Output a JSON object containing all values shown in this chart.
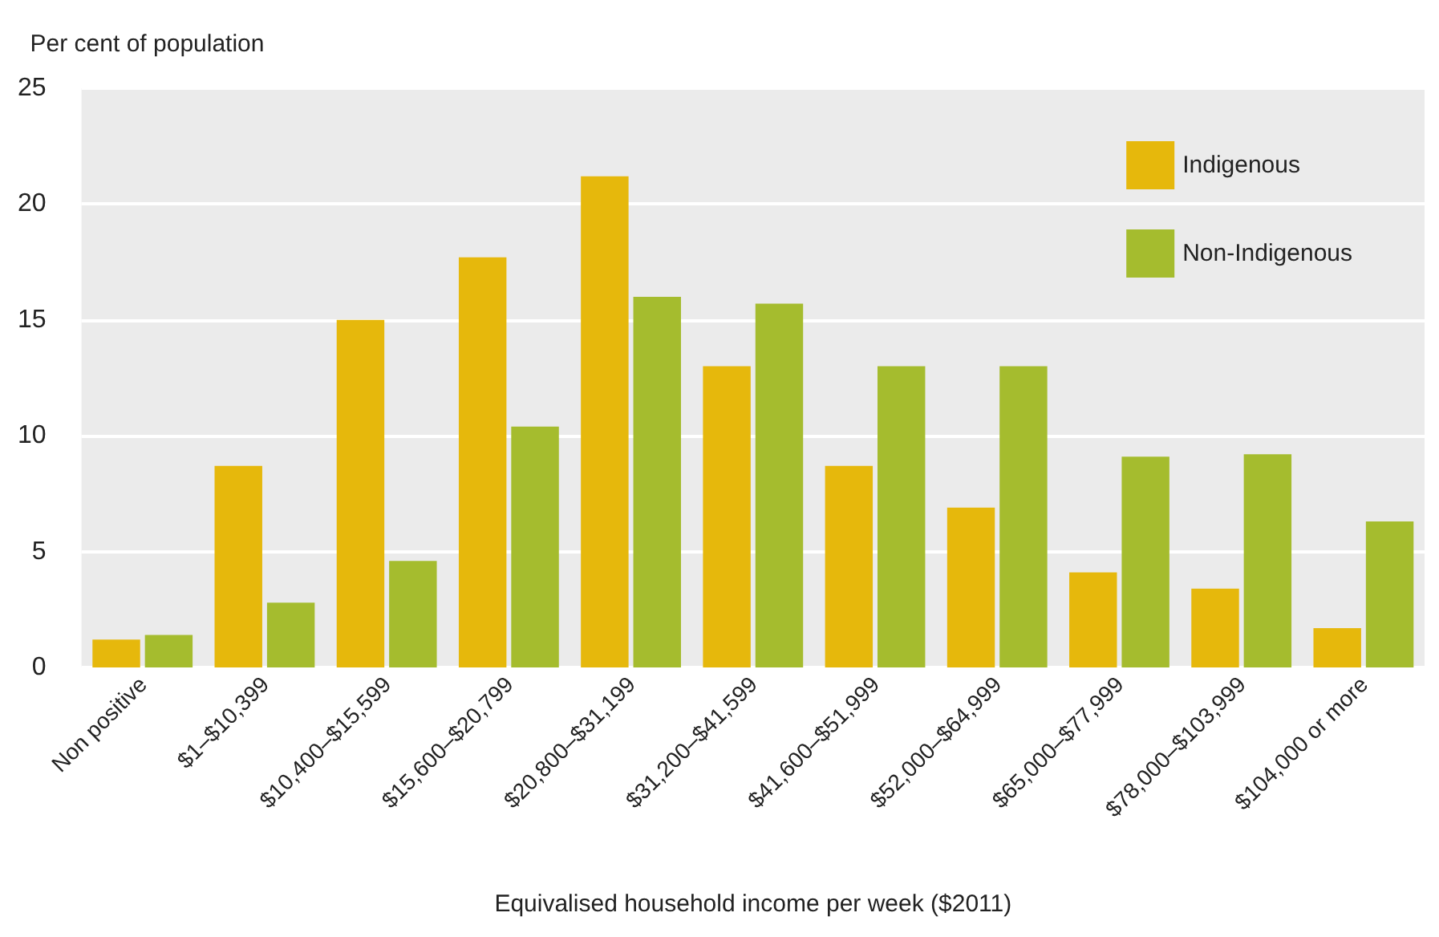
{
  "chart_data": {
    "type": "bar",
    "xlabel": "Equivalised household income per week ($2011)",
    "ylabel": "Per cent of population",
    "categories": [
      "Non positive",
      "$1–$10,399",
      "$10,400–$15,599",
      "$15,600–$20,799",
      "$20,800–$31,199",
      "$31,200–$41,599",
      "$41,600–$51,999",
      "$52,000–$64,999",
      "$65,000–$77,999",
      "$78,000–$103,999",
      "$104,000 or more"
    ],
    "series": [
      {
        "name": "Indigenous",
        "color": "#e6b80c",
        "values": [
          1.2,
          8.7,
          15.0,
          17.7,
          21.2,
          13.0,
          8.7,
          6.9,
          4.1,
          3.4,
          1.7
        ]
      },
      {
        "name": "Non-Indigenous",
        "color": "#a5bc2e",
        "values": [
          1.4,
          2.8,
          4.6,
          10.4,
          16.0,
          15.7,
          13.0,
          13.0,
          9.1,
          9.2,
          6.3
        ]
      }
    ],
    "ylim": [
      0,
      25
    ],
    "yticks": [
      0,
      5,
      10,
      15,
      20,
      25
    ],
    "grid": "y",
    "legend": "top right"
  }
}
